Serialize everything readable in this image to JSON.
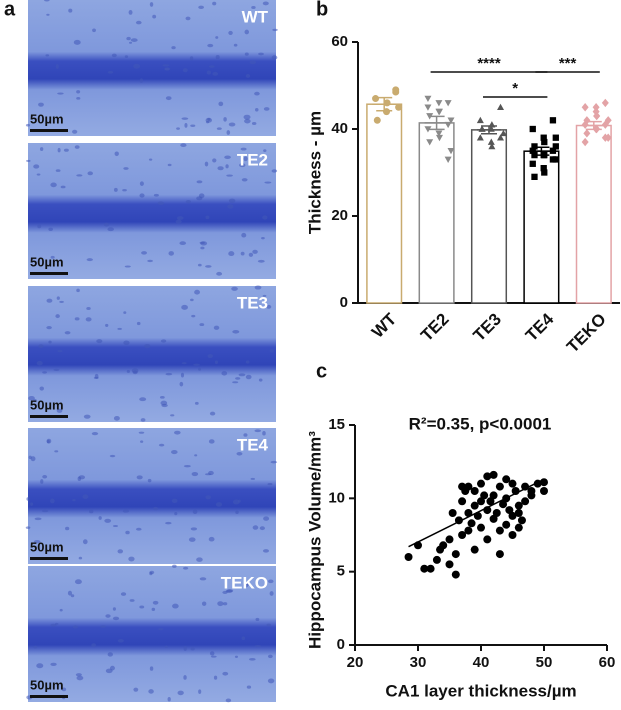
{
  "panel_labels": [
    "a",
    "b",
    "c"
  ],
  "micrographs": [
    {
      "label": "WT",
      "scale_bar": "50µm"
    },
    {
      "label": "TE2",
      "scale_bar": "50µm"
    },
    {
      "label": "TE3",
      "scale_bar": "50µm"
    },
    {
      "label": "TE4",
      "scale_bar": "50µm"
    },
    {
      "label": "TEKO",
      "scale_bar": "50µm"
    }
  ],
  "chart_data": [
    {
      "type": "bar",
      "ylabel": "Thickness - µm",
      "categories": [
        "WT",
        "TE2",
        "TE3",
        "TE4",
        "TEKO"
      ],
      "values": [
        45.7,
        41.4,
        39.8,
        34.9,
        40.8
      ],
      "errors": [
        1.5,
        1.5,
        0.9,
        0.9,
        0.9
      ],
      "colors": [
        "#c9ab6f",
        "#8a8a8a",
        "#555555",
        "#000000",
        "#e3a3a6"
      ],
      "markers": [
        "circle",
        "triangle-down",
        "triangle-up",
        "square",
        "diamond"
      ],
      "points": [
        [
          48.5,
          47,
          44,
          46,
          42,
          45,
          49
        ],
        [
          46,
          45,
          44,
          44,
          43,
          42,
          41,
          40,
          39,
          38,
          37,
          35,
          33,
          47,
          46
        ],
        [
          45,
          42,
          40,
          41,
          40,
          39,
          38,
          38,
          37,
          36,
          40
        ],
        [
          42,
          40,
          38,
          37,
          36,
          36,
          35,
          35,
          34,
          34,
          34,
          33,
          33,
          32,
          31,
          30,
          29,
          38
        ],
        [
          46,
          45,
          44,
          43,
          42,
          42,
          41,
          41,
          40,
          40,
          39,
          38,
          38,
          37,
          45,
          43
        ]
      ],
      "significance": [
        {
          "groups": [
            "TE2",
            "TE4"
          ],
          "label": "****"
        },
        {
          "groups": [
            "TE3",
            "TE4"
          ],
          "label": "*"
        },
        {
          "groups": [
            "TE4",
            "TEKO"
          ],
          "label": "***"
        }
      ],
      "ylim": [
        0,
        60
      ],
      "yticks": [
        0,
        20,
        40,
        60
      ]
    },
    {
      "type": "scatter",
      "annotation": "R²=0.35, p<0.0001",
      "xlabel": "CA1 layer thickness/µm",
      "ylabel": "Hippocampus Volume/mm³",
      "color": "#000000",
      "x": [
        28.5,
        30,
        31,
        32,
        33,
        33.5,
        34,
        35,
        35,
        36,
        36,
        36.5,
        37,
        37,
        37.5,
        38,
        38,
        38,
        38.5,
        39,
        39,
        39,
        39.5,
        40,
        40,
        40,
        40.5,
        41,
        41,
        41,
        41.5,
        42,
        42,
        42,
        42.5,
        43,
        43,
        43,
        43.5,
        44,
        44,
        44,
        44.5,
        45,
        45,
        45,
        45.5,
        46,
        46,
        46.5,
        47,
        47,
        48,
        48,
        49,
        50,
        50,
        46,
        37,
        35.5
      ],
      "y": [
        6.0,
        6.8,
        5.2,
        5.2,
        5.8,
        6.5,
        6.8,
        7.2,
        5.5,
        4.8,
        6.2,
        8.5,
        7.5,
        10.8,
        10.5,
        9.0,
        7.8,
        10.8,
        8.3,
        9.5,
        10.5,
        6.5,
        8.8,
        9.8,
        8.0,
        11.0,
        10.2,
        11.5,
        9.2,
        7.2,
        9.8,
        11.6,
        8.6,
        10.2,
        9.0,
        7.8,
        10.8,
        6.2,
        9.6,
        11.3,
        8.2,
        10.0,
        9.2,
        11.0,
        7.5,
        8.8,
        10.5,
        9.5,
        8.0,
        8.5,
        10.8,
        9.8,
        10.2,
        10.5,
        11.0,
        10.5,
        11.1,
        9.0,
        9.8,
        9.0
      ],
      "fit_line": {
        "x": [
          28.5,
          50
        ],
        "y": [
          6.7,
          11.3
        ]
      },
      "xlim": [
        20,
        60
      ],
      "xticks": [
        20,
        30,
        40,
        50,
        60
      ],
      "ylim": [
        0,
        15
      ],
      "yticks": [
        0,
        5,
        10,
        15
      ]
    }
  ]
}
